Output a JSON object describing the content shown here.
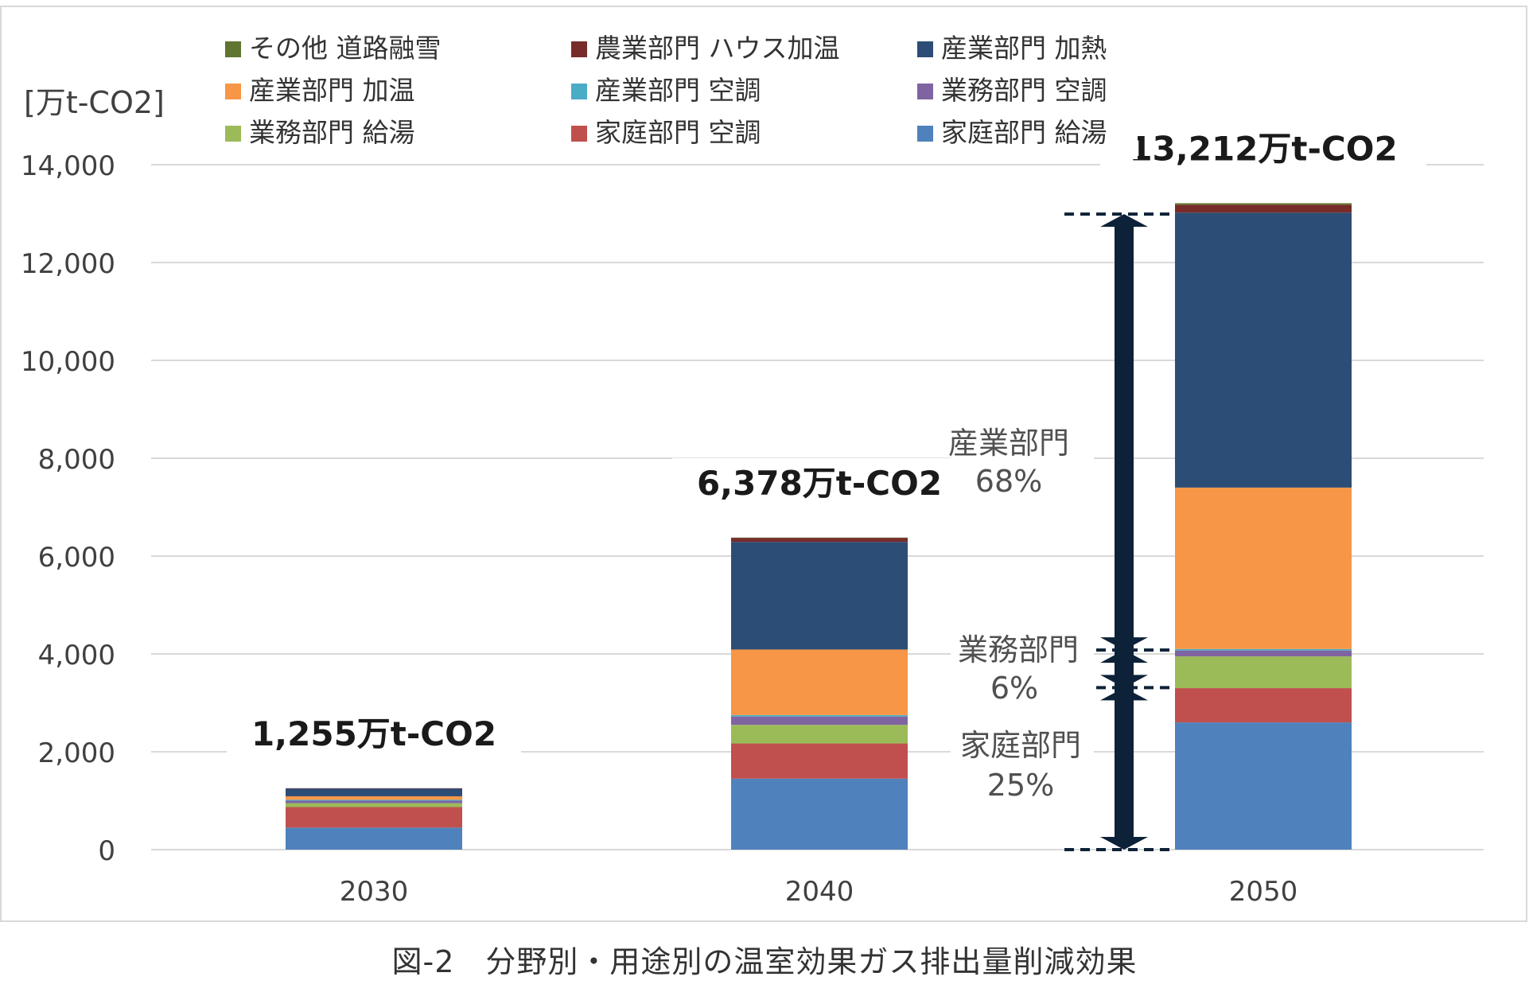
{
  "chart_data": {
    "type": "bar",
    "stacked": true,
    "ylabel": "[万t-CO2]",
    "ylim": [
      0,
      14000
    ],
    "yticks": [
      0,
      2000,
      4000,
      6000,
      8000,
      10000,
      12000,
      14000
    ],
    "ytick_labels": [
      "0",
      "2,000",
      "4,000",
      "6,000",
      "8,000",
      "10,000",
      "12,000",
      "14,000"
    ],
    "grid": true,
    "legend_position": "top",
    "categories": [
      "2030",
      "2040",
      "2050"
    ],
    "series": [
      {
        "name": "家庭部門 給湯",
        "color": "#4F81BD",
        "values": [
          450,
          1450,
          2600
        ]
      },
      {
        "name": "家庭部門 空調",
        "color": "#C0504D",
        "values": [
          420,
          720,
          700
        ]
      },
      {
        "name": "業務部門 給湯",
        "color": "#9BBB59",
        "values": [
          80,
          380,
          650
        ]
      },
      {
        "name": "業務部門 空調",
        "color": "#8064A2",
        "values": [
          50,
          170,
          120
        ]
      },
      {
        "name": "産業部門 空調",
        "color": "#4BACC6",
        "values": [
          20,
          30,
          30
        ]
      },
      {
        "name": "産業部門 加温",
        "color": "#F79646",
        "values": [
          70,
          1340,
          3300
        ]
      },
      {
        "name": "産業部門 加熱",
        "color": "#2C4D75",
        "values": [
          160,
          2200,
          5620
        ]
      },
      {
        "name": "農業部門 ハウス加温",
        "color": "#772C2A",
        "values": [
          5,
          83,
          162
        ]
      },
      {
        "name": "その他 道路融雪",
        "color": "#5F7530",
        "values": [
          0,
          5,
          30
        ]
      }
    ],
    "totals": [
      1255,
      6378,
      13212
    ],
    "total_labels": [
      "1,255万t-CO2",
      "6,378万t-CO2",
      "13,212万t-CO2"
    ],
    "annotations": {
      "industry": {
        "name": "産業部門",
        "pct": "68%"
      },
      "business": {
        "name": "業務部門",
        "pct": "6%"
      },
      "household": {
        "name": "家庭部門",
        "pct": "25%"
      }
    },
    "legend_order": [
      8,
      7,
      6,
      5,
      4,
      3,
      2,
      1,
      0
    ]
  },
  "caption": "図-2　分野別・用途別の温室効果ガス排出量削減効果"
}
